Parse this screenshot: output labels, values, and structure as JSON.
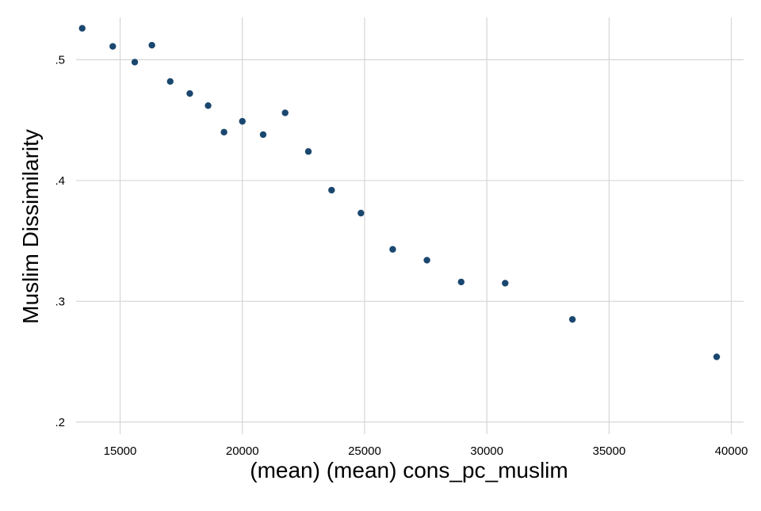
{
  "chart_data": {
    "type": "scatter",
    "title": "",
    "xlabel": "(mean) (mean) cons_pc_muslim",
    "ylabel": "Muslim Dissimilarity",
    "xlim": [
      13200,
      40500
    ],
    "ylim": [
      0.19,
      0.535
    ],
    "xticks": [
      15000,
      20000,
      25000,
      30000,
      35000,
      40000
    ],
    "xtick_labels": [
      "15000",
      "20000",
      "25000",
      "30000",
      "35000",
      "40000"
    ],
    "yticks": [
      0.2,
      0.3,
      0.4,
      0.5
    ],
    "ytick_labels": [
      ".2",
      ".3",
      ".4",
      ".5"
    ],
    "grid": true,
    "legend": "none",
    "marker_color": "#1a476f",
    "grid_color": "#d6d6d6",
    "series": [
      {
        "x": [
          13450,
          14700,
          15600,
          16300,
          17050,
          17850,
          18600,
          19250,
          20000,
          20850,
          21750,
          22700,
          23650,
          24850,
          26150,
          27550,
          28950,
          30750,
          33500,
          39400
        ],
        "y": [
          0.526,
          0.511,
          0.498,
          0.512,
          0.482,
          0.472,
          0.462,
          0.44,
          0.449,
          0.438,
          0.456,
          0.424,
          0.392,
          0.373,
          0.343,
          0.334,
          0.316,
          0.315,
          0.285,
          0.254
        ]
      }
    ]
  }
}
